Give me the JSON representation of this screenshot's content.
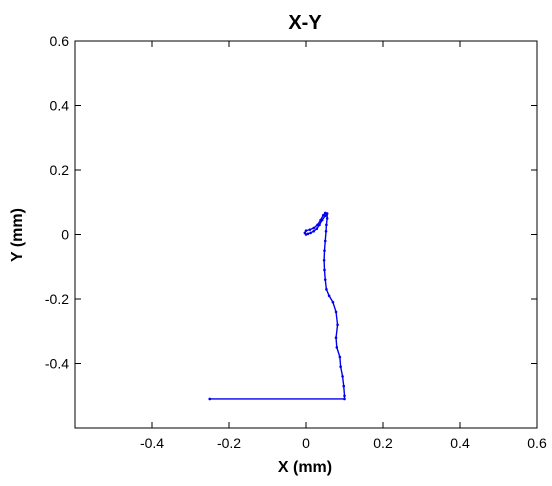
{
  "chart_data": {
    "type": "line",
    "title": "X-Y",
    "xlabel": "X (mm)",
    "ylabel": "Y (mm)",
    "xlim": [
      -0.6,
      0.6
    ],
    "ylim": [
      -0.6,
      0.6
    ],
    "xticks": [
      "-0.4",
      "-0.2",
      "0",
      "0.2",
      "0.4",
      "0.6"
    ],
    "yticks": [
      "-0.4",
      "-0.2",
      "0",
      "0.2",
      "0.4",
      "0.6"
    ],
    "grid": false,
    "series": [
      {
        "color": "#0000ee",
        "x": [
          -0.25,
          0.1,
          0.1,
          0.098,
          0.095,
          0.09,
          0.088,
          0.08,
          0.078,
          0.082,
          0.078,
          0.07,
          0.06,
          0.053,
          0.05,
          0.048,
          0.047,
          0.048,
          0.05,
          0.052,
          0.053,
          0.055,
          0.055,
          0.05,
          0.042,
          0.035,
          0.028,
          0.02,
          0.012,
          0.005,
          0.0,
          -0.003,
          0.0,
          0.01,
          0.02,
          0.03,
          0.038,
          0.045,
          0.05,
          0.053
        ],
        "y": [
          -0.51,
          -0.51,
          -0.5,
          -0.47,
          -0.44,
          -0.41,
          -0.38,
          -0.35,
          -0.32,
          -0.28,
          -0.24,
          -0.21,
          -0.19,
          -0.17,
          -0.14,
          -0.11,
          -0.08,
          -0.05,
          -0.02,
          0.01,
          0.03,
          0.05,
          0.065,
          0.058,
          0.045,
          0.03,
          0.018,
          0.01,
          0.005,
          0.002,
          0.0,
          0.005,
          0.012,
          0.015,
          0.02,
          0.03,
          0.045,
          0.06,
          0.067,
          0.065
        ]
      }
    ]
  }
}
